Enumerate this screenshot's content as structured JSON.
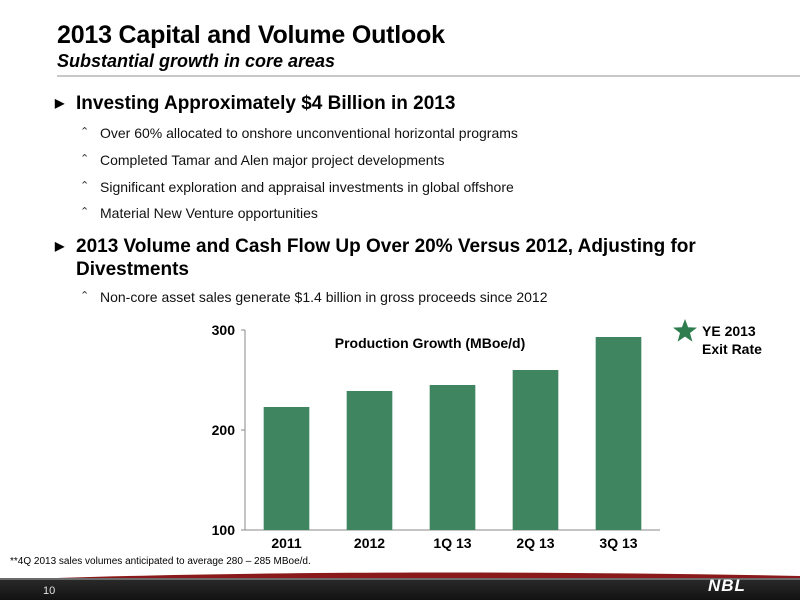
{
  "header": {
    "title": "2013 Capital and Volume Outlook",
    "subtitle": "Substantial growth in core areas"
  },
  "bullets": [
    {
      "text": "Investing Approximately $4 Billion in 2013",
      "subs": [
        "Over 60% allocated to onshore unconventional horizontal programs",
        "Completed Tamar and Alen major project developments",
        "Significant exploration and appraisal investments in global offshore",
        "Material New Venture opportunities"
      ]
    },
    {
      "text": "2013 Volume and Cash Flow Up Over 20% Versus 2012, Adjusting for Divestments",
      "subs": [
        "Non-core asset sales generate $1.4 billion in gross proceeds since 2012"
      ]
    }
  ],
  "chart_data": {
    "type": "bar",
    "title": "Production Growth (MBoe/d)",
    "categories": [
      "2011",
      "2012",
      "1Q 13",
      "2Q 13",
      "3Q 13"
    ],
    "values": [
      223,
      239,
      245,
      260,
      293
    ],
    "ylim": [
      100,
      300
    ],
    "yticks": [
      "100",
      "200",
      "300"
    ],
    "xlabel": "",
    "ylabel": "",
    "grid": false,
    "bar_color": "#3e8560"
  },
  "legend": {
    "label_line1": "YE 2013",
    "label_line2": "Exit Rate",
    "star_color": "#2e7d4e"
  },
  "footnote": "**4Q 2013 sales volumes anticipated to average 280 – 285 MBoe/d.",
  "footer": {
    "page_number": "10",
    "logo": "NBL"
  }
}
